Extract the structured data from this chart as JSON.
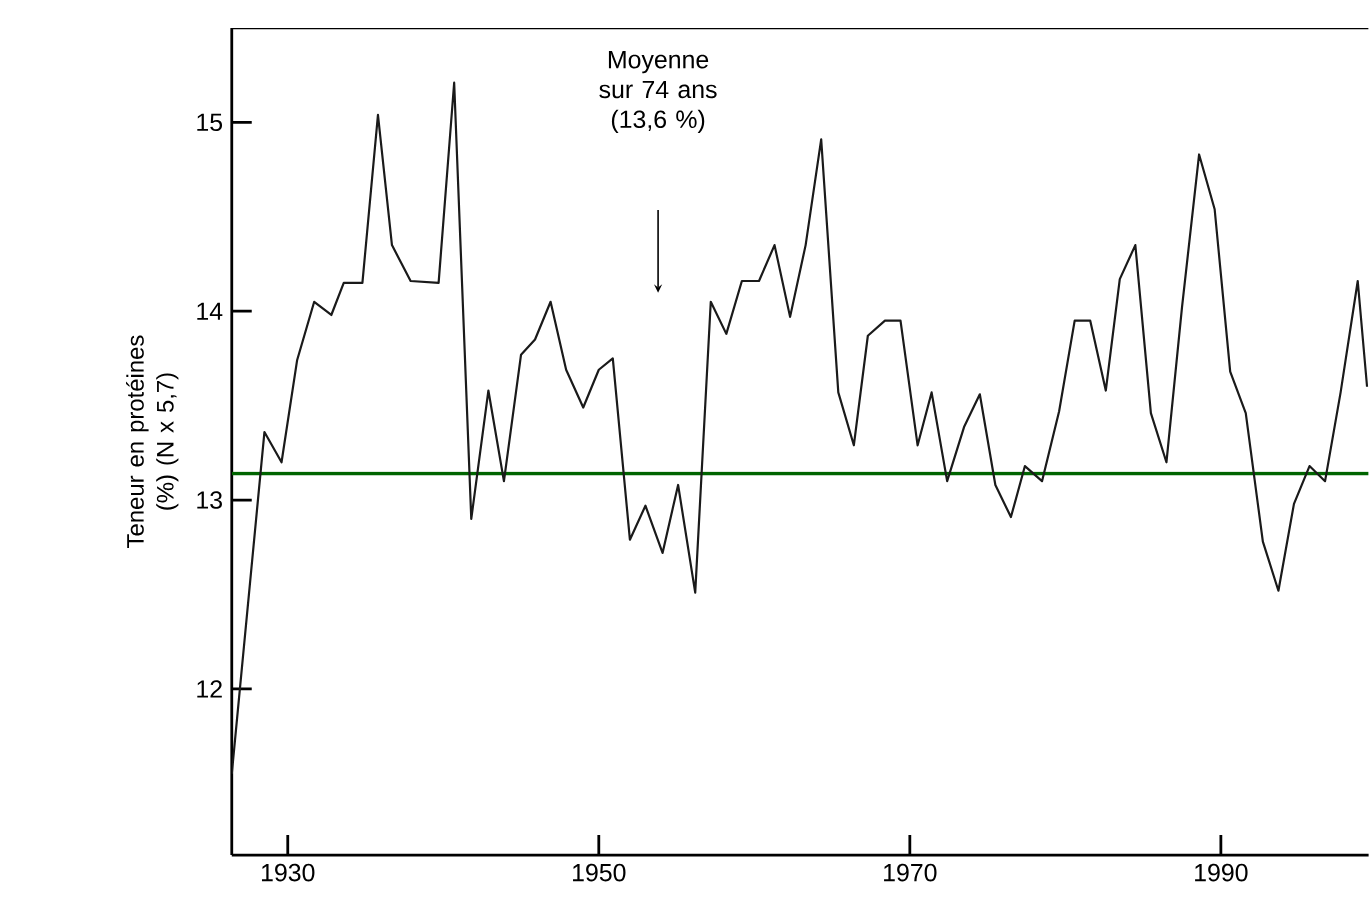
{
  "chart_data": {
    "type": "line",
    "ylabel": "Teneur en protéines (%) (N x 5,7)",
    "xlim": [
      1926.4,
      1999.5
    ],
    "ylim": [
      11.12,
      15.5
    ],
    "xticks": [
      1930,
      1950,
      1970,
      1990
    ],
    "yticks": [
      12,
      13,
      14,
      15
    ],
    "series": [
      {
        "color": "#1a1a1a",
        "x": [
          1926.4,
          1928.5,
          1929.6,
          1930.6,
          1931.7,
          1932.8,
          1933.6,
          1934.8,
          1935.8,
          1936.7,
          1937.9,
          1939.7,
          1940.7,
          1941.8,
          1942.9,
          1943.9,
          1945.0,
          1945.9,
          1946.9,
          1947.9,
          1949.0,
          1950.0,
          1950.9,
          1952.0,
          1953.0,
          1954.1,
          1955.1,
          1956.2,
          1957.2,
          1958.2,
          1959.2,
          1960.3,
          1961.3,
          1962.3,
          1963.3,
          1964.3,
          1965.4,
          1966.4,
          1967.3,
          1968.4,
          1969.4,
          1970.5,
          1971.4,
          1972.4,
          1973.5,
          1974.5,
          1975.5,
          1976.5,
          1977.4,
          1978.5,
          1979.6,
          1980.6,
          1981.6,
          1982.6,
          1983.5,
          1984.5,
          1985.5,
          1986.5,
          1987.5,
          1988.6,
          1989.6,
          1990.6,
          1991.6,
          1992.7,
          1993.7,
          1994.7,
          1995.7,
          1996.7,
          1997.7,
          1998.8,
          1999.4
        ],
        "values": [
          11.55,
          13.36,
          13.2,
          13.74,
          14.05,
          13.98,
          14.15,
          14.15,
          15.04,
          14.35,
          14.16,
          14.15,
          15.21,
          12.9,
          13.58,
          13.1,
          13.77,
          13.85,
          14.05,
          13.69,
          13.49,
          13.69,
          13.75,
          12.79,
          12.97,
          12.72,
          13.08,
          12.51,
          14.05,
          13.88,
          14.16,
          14.16,
          14.35,
          13.97,
          14.35,
          14.91,
          13.57,
          13.29,
          13.87,
          13.95,
          13.95,
          13.29,
          13.57,
          13.1,
          13.39,
          13.56,
          13.08,
          12.91,
          13.18,
          13.1,
          13.47,
          13.95,
          13.95,
          13.58,
          14.17,
          14.35,
          13.46,
          13.2,
          14.02,
          14.83,
          14.54,
          13.68,
          13.46,
          12.78,
          12.52,
          12.98,
          13.18,
          13.1,
          13.57,
          14.16,
          13.6
        ]
      }
    ],
    "ref_lines": [
      {
        "axis": "y",
        "value": 13.14,
        "color": "#006400"
      }
    ],
    "annotations": [
      "Moyenne sur 74 ans (13,6 %)"
    ],
    "grid": false,
    "legend": false,
    "marker": "none",
    "line_style": "solid"
  }
}
